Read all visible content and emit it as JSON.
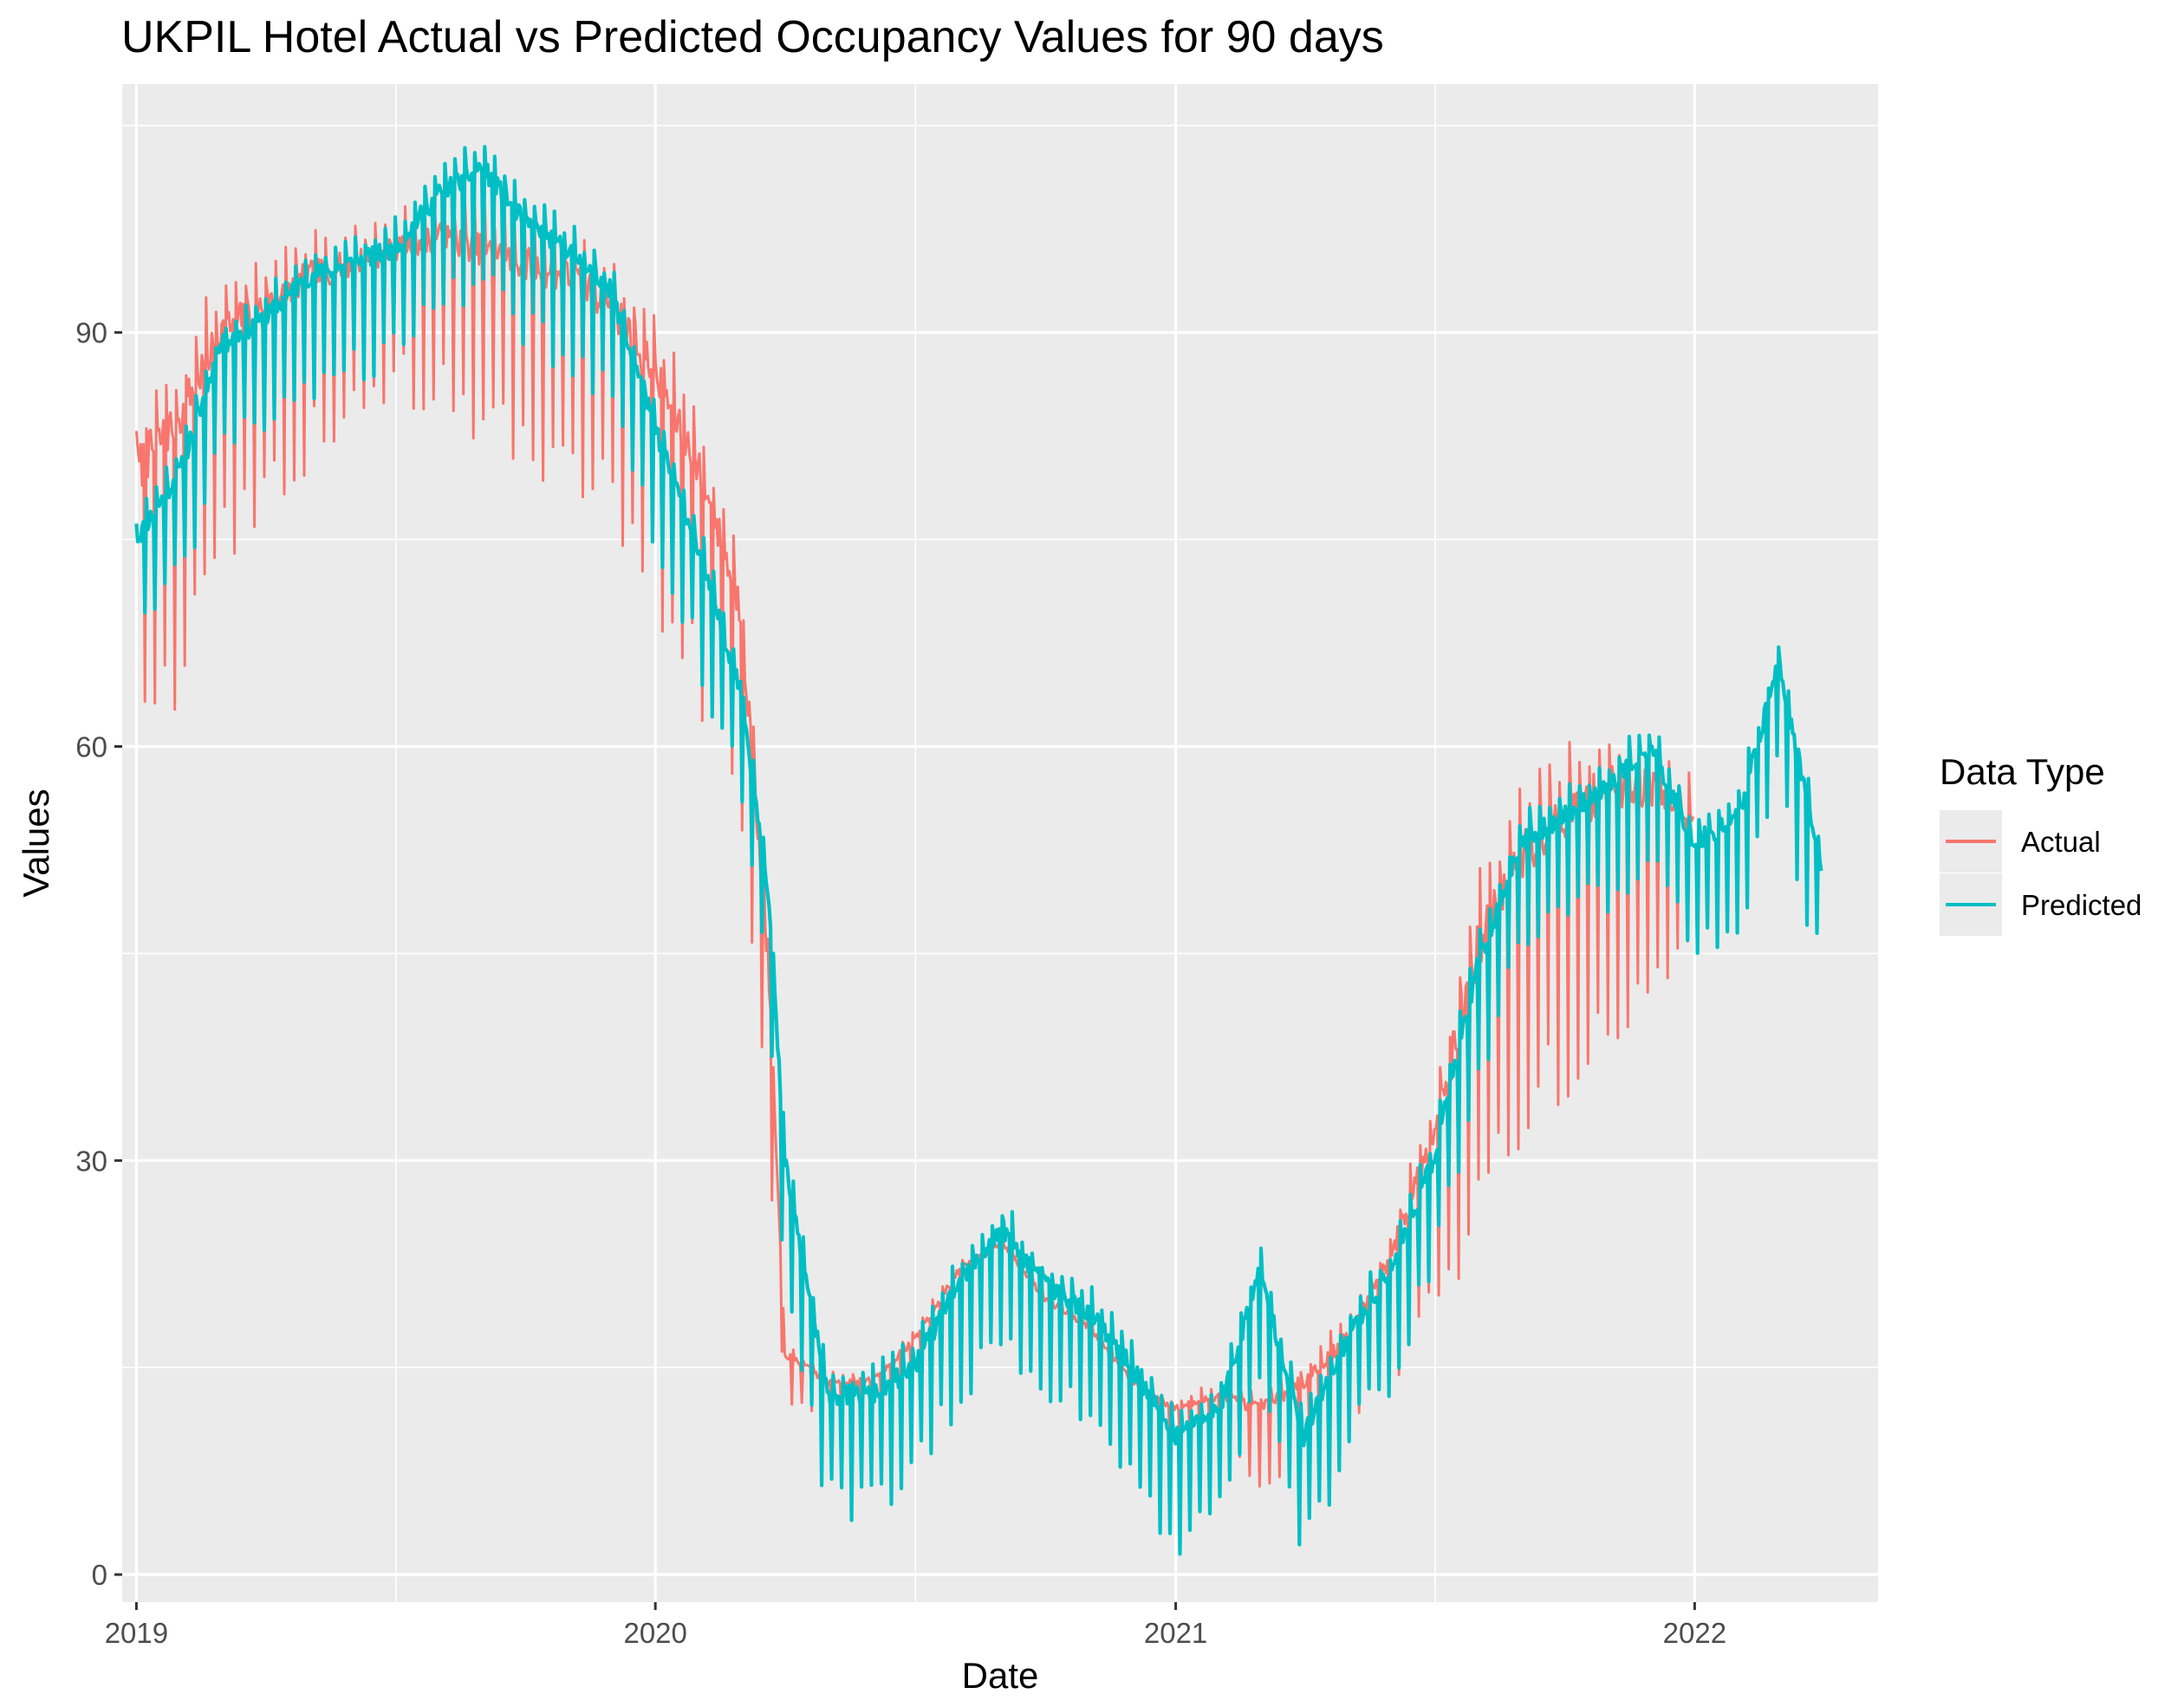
{
  "chart_data": {
    "type": "line",
    "title": "UKPIL Hotel Actual vs Predicted Occupancy Values for 90 days",
    "xlabel": "Date",
    "ylabel": "Values",
    "x_ticks": [
      "2019",
      "2020",
      "2021",
      "2022"
    ],
    "y_ticks": [
      0,
      30,
      60,
      90
    ],
    "xlim": [
      "2018-12-22",
      "2022-05-10"
    ],
    "ylim": [
      -2,
      108
    ],
    "grid": true,
    "legend": {
      "title": "Data Type",
      "position": "right",
      "entries": [
        {
          "label": "Actual",
          "color": "#F8766D"
        },
        {
          "label": "Predicted",
          "color": "#00BFC4"
        }
      ]
    },
    "weekly_oscillation": true,
    "series": [
      {
        "name": "Actual",
        "color": "#F8766D",
        "date_start": "2019-01-01",
        "date_end": "2021-12-31",
        "trend": [
          [
            "2019-01-01",
            80
          ],
          [
            "2019-02-01",
            84
          ],
          [
            "2019-03-01",
            90
          ],
          [
            "2019-04-01",
            92
          ],
          [
            "2019-05-01",
            94
          ],
          [
            "2019-06-01",
            95
          ],
          [
            "2019-07-01",
            96
          ],
          [
            "2019-08-01",
            97
          ],
          [
            "2019-09-01",
            96
          ],
          [
            "2019-10-01",
            95
          ],
          [
            "2019-11-01",
            94
          ],
          [
            "2019-12-01",
            92
          ],
          [
            "2020-01-01",
            87
          ],
          [
            "2020-02-01",
            80
          ],
          [
            "2020-03-01",
            70
          ],
          [
            "2020-03-20",
            45
          ],
          [
            "2020-04-01",
            16
          ],
          [
            "2020-05-01",
            14
          ],
          [
            "2020-06-01",
            14
          ],
          [
            "2020-07-01",
            17
          ],
          [
            "2020-08-01",
            22
          ],
          [
            "2020-09-01",
            24
          ],
          [
            "2020-10-01",
            20
          ],
          [
            "2020-11-01",
            18
          ],
          [
            "2020-12-01",
            14
          ],
          [
            "2021-01-01",
            12
          ],
          [
            "2021-02-01",
            13
          ],
          [
            "2021-03-01",
            12
          ],
          [
            "2021-04-01",
            14
          ],
          [
            "2021-05-01",
            17
          ],
          [
            "2021-06-01",
            23
          ],
          [
            "2021-07-01",
            32
          ],
          [
            "2021-08-01",
            45
          ],
          [
            "2021-09-01",
            52
          ],
          [
            "2021-10-01",
            55
          ],
          [
            "2021-11-01",
            57
          ],
          [
            "2021-12-01",
            57
          ],
          [
            "2021-12-31",
            55
          ]
        ],
        "weekly_drop": [
          [
            "2019-01-01",
            20
          ],
          [
            "2019-04-01",
            14
          ],
          [
            "2019-07-01",
            10
          ],
          [
            "2019-10-01",
            14
          ],
          [
            "2020-01-01",
            16
          ],
          [
            "2020-03-15",
            16
          ],
          [
            "2020-04-01",
            3
          ],
          [
            "2020-12-31",
            3
          ],
          [
            "2021-06-01",
            8
          ],
          [
            "2021-08-01",
            22
          ],
          [
            "2021-11-01",
            18
          ],
          [
            "2021-12-31",
            12
          ]
        ]
      },
      {
        "name": "Predicted",
        "color": "#00BFC4",
        "date_start": "2019-01-01",
        "date_end": "2022-03-31",
        "trend": [
          [
            "2019-01-01",
            75
          ],
          [
            "2019-02-01",
            80
          ],
          [
            "2019-03-01",
            89
          ],
          [
            "2019-04-01",
            91
          ],
          [
            "2019-05-01",
            94
          ],
          [
            "2019-06-01",
            95
          ],
          [
            "2019-07-01",
            96
          ],
          [
            "2019-08-01",
            100
          ],
          [
            "2019-09-01",
            102
          ],
          [
            "2019-10-01",
            98
          ],
          [
            "2019-11-01",
            96
          ],
          [
            "2019-12-01",
            93
          ],
          [
            "2020-01-01",
            83
          ],
          [
            "2020-02-01",
            74
          ],
          [
            "2020-03-01",
            64
          ],
          [
            "2020-03-20",
            50
          ],
          [
            "2020-04-01",
            30
          ],
          [
            "2020-05-01",
            13
          ],
          [
            "2020-06-01",
            13
          ],
          [
            "2020-07-01",
            15
          ],
          [
            "2020-08-01",
            21
          ],
          [
            "2020-09-01",
            25
          ],
          [
            "2020-10-01",
            21
          ],
          [
            "2020-11-01",
            19
          ],
          [
            "2020-12-01",
            15
          ],
          [
            "2021-01-01",
            10
          ],
          [
            "2021-02-01",
            12
          ],
          [
            "2021-03-01",
            22
          ],
          [
            "2021-04-01",
            10
          ],
          [
            "2021-05-01",
            17
          ],
          [
            "2021-06-01",
            22
          ],
          [
            "2021-07-01",
            30
          ],
          [
            "2021-08-01",
            44
          ],
          [
            "2021-09-01",
            53
          ],
          [
            "2021-10-01",
            55
          ],
          [
            "2021-11-01",
            57
          ],
          [
            "2021-12-01",
            60
          ],
          [
            "2022-01-01",
            53
          ],
          [
            "2022-02-01",
            55
          ],
          [
            "2022-03-01",
            66
          ],
          [
            "2022-03-31",
            51
          ]
        ],
        "weekly_drop": [
          [
            "2019-01-01",
            8
          ],
          [
            "2019-06-01",
            8
          ],
          [
            "2020-01-01",
            8
          ],
          [
            "2020-04-01",
            8
          ],
          [
            "2020-12-31",
            8
          ],
          [
            "2021-06-01",
            8
          ],
          [
            "2022-03-31",
            8
          ]
        ]
      }
    ]
  }
}
